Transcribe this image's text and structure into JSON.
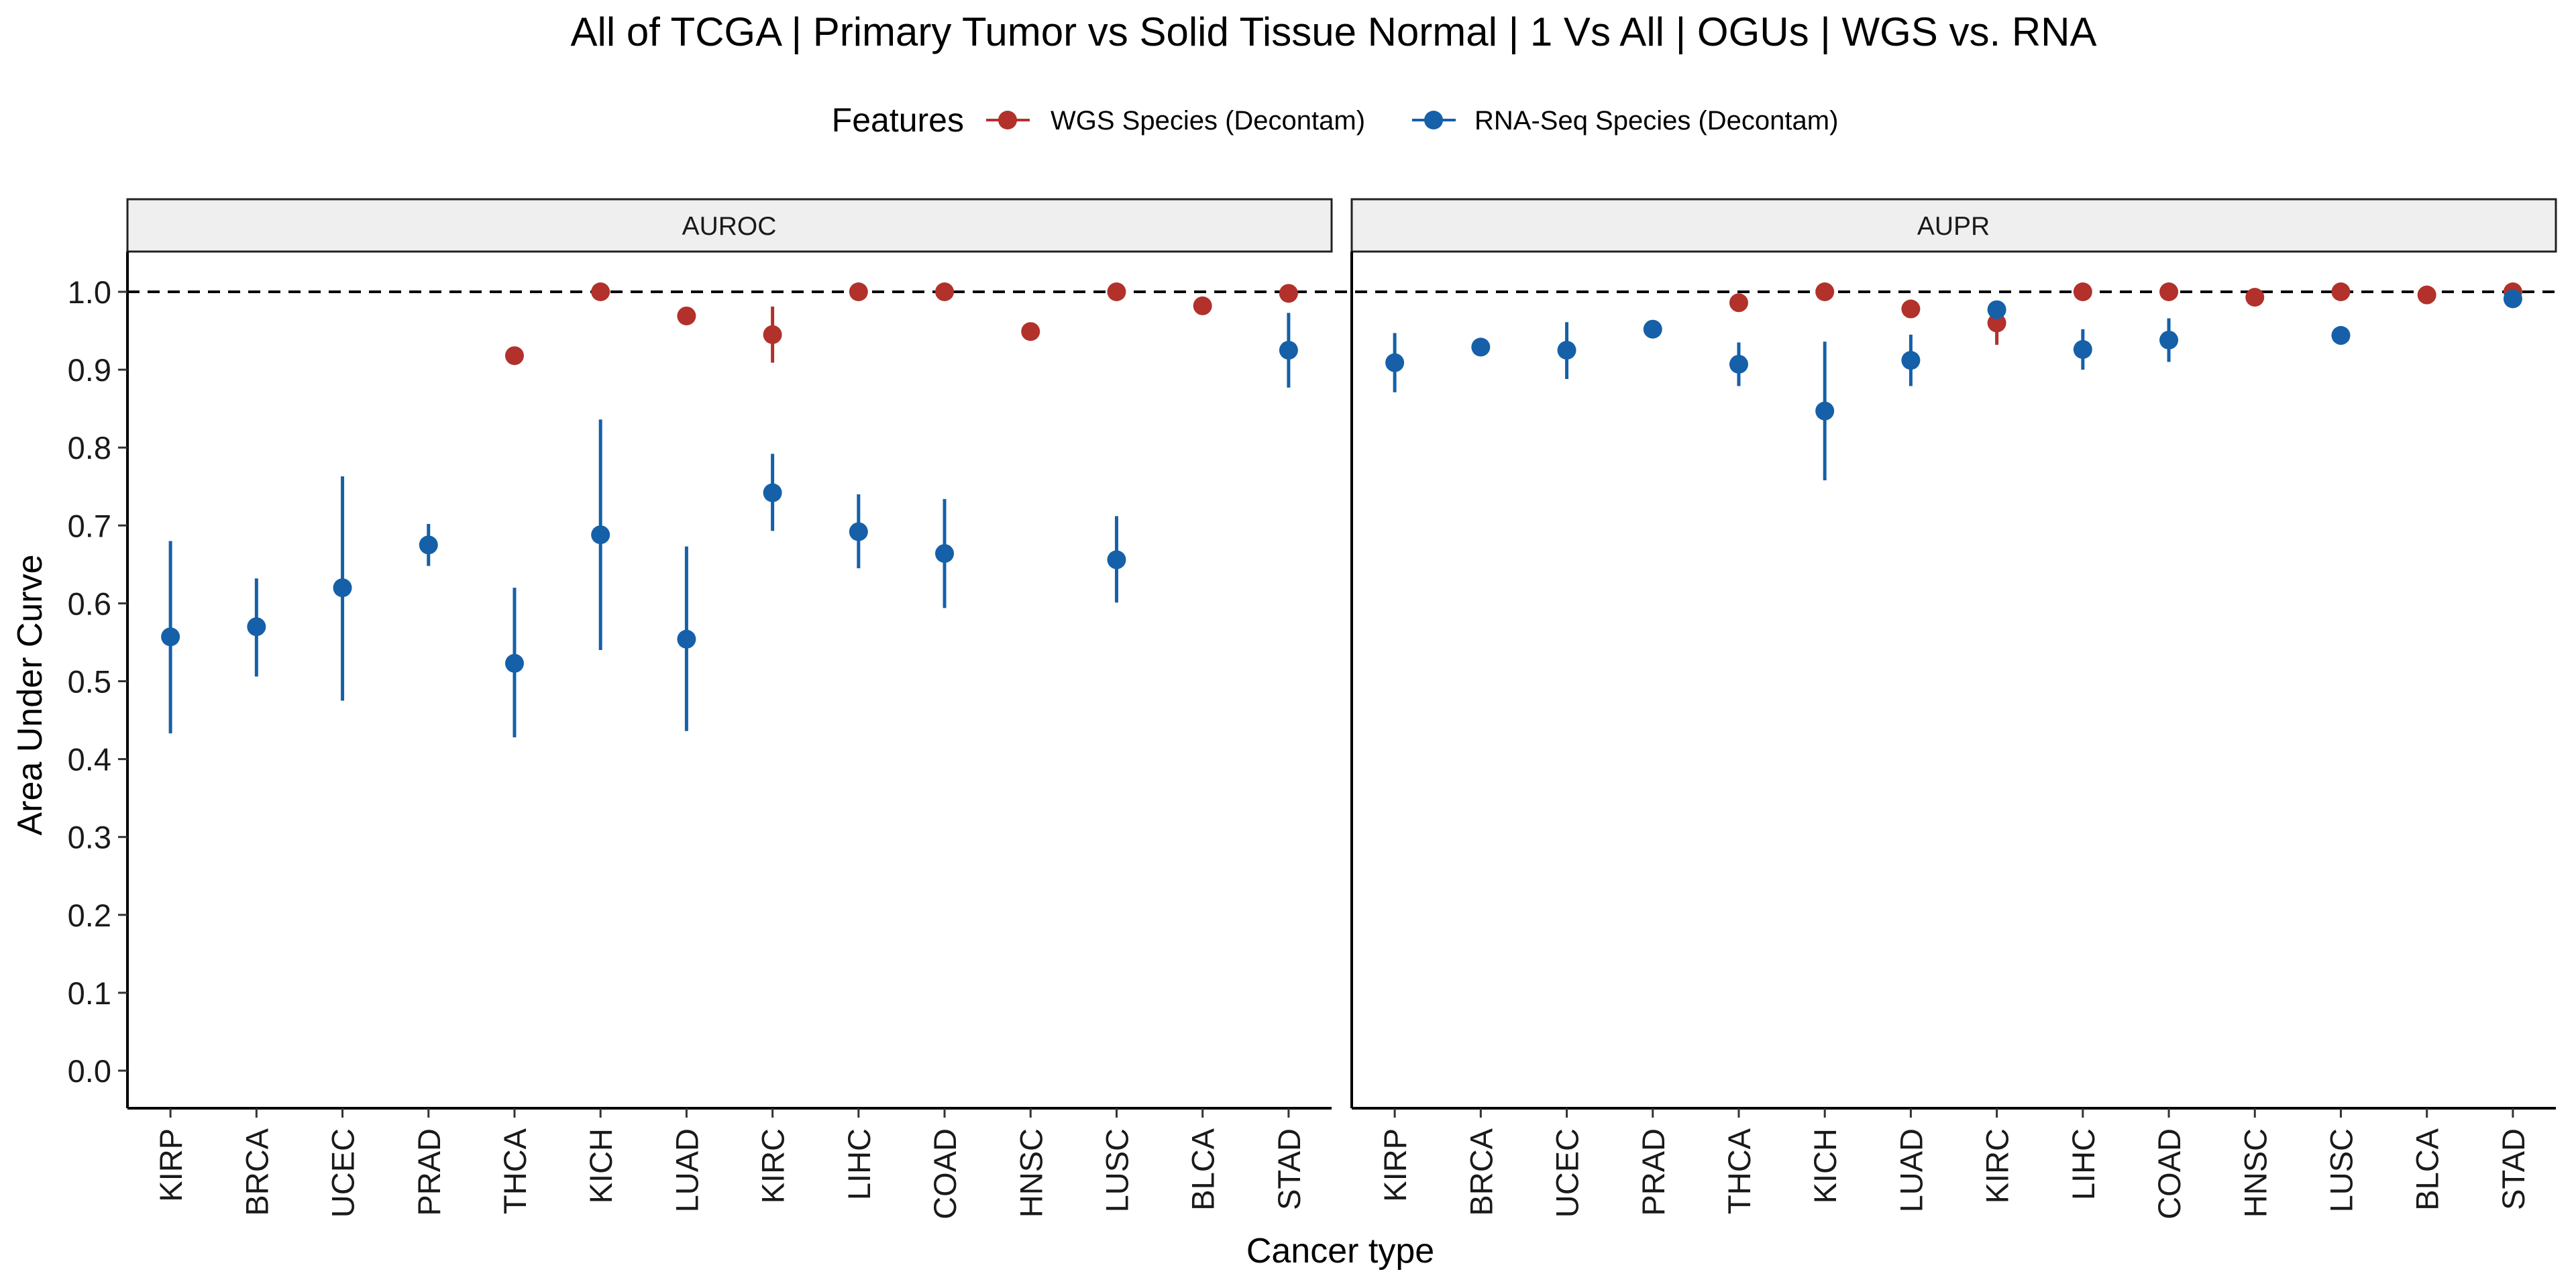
{
  "chart_data": {
    "type": "scatter",
    "title": "All of TCGA | Primary Tumor vs Solid Tissue Normal | 1 Vs All | OGUs | WGS vs. RNA",
    "xlabel": "Cancer type",
    "ylabel": "Area Under Curve",
    "ylim": [
      -0.05,
      1.05
    ],
    "yticks": [
      "0.0",
      "0.1",
      "0.2",
      "0.3",
      "0.4",
      "0.5",
      "0.6",
      "0.7",
      "0.8",
      "0.9",
      "1.0"
    ],
    "reference_line": 1.0,
    "legend": {
      "title": "Features",
      "position": "top"
    },
    "categories": [
      "KIRP",
      "BRCA",
      "UCEC",
      "PRAD",
      "THCA",
      "KICH",
      "LUAD",
      "KIRC",
      "LIHC",
      "COAD",
      "HNSC",
      "LUSC",
      "BLCA",
      "STAD"
    ],
    "series": [
      {
        "name": "WGS Species (Decontam)",
        "color": "#b2312b"
      },
      {
        "name": "RNA-Seq Species (Decontam)",
        "color": "#1560a8"
      }
    ],
    "panels": [
      {
        "label": "AUROC",
        "points": [
          {
            "category": "KIRP",
            "series": 1,
            "y": 0.557,
            "lo": 0.433,
            "hi": 0.68
          },
          {
            "category": "BRCA",
            "series": 1,
            "y": 0.57,
            "lo": 0.506,
            "hi": 0.632
          },
          {
            "category": "UCEC",
            "series": 1,
            "y": 0.62,
            "lo": 0.475,
            "hi": 0.763
          },
          {
            "category": "PRAD",
            "series": 1,
            "y": 0.675,
            "lo": 0.648,
            "hi": 0.702
          },
          {
            "category": "THCA",
            "series": 0,
            "y": 0.918,
            "lo": 0.918,
            "hi": 0.918
          },
          {
            "category": "THCA",
            "series": 1,
            "y": 0.523,
            "lo": 0.428,
            "hi": 0.62
          },
          {
            "category": "KICH",
            "series": 0,
            "y": 1.0,
            "lo": 1.0,
            "hi": 1.0
          },
          {
            "category": "KICH",
            "series": 1,
            "y": 0.688,
            "lo": 0.54,
            "hi": 0.836
          },
          {
            "category": "LUAD",
            "series": 0,
            "y": 0.969,
            "lo": 0.969,
            "hi": 0.969
          },
          {
            "category": "LUAD",
            "series": 1,
            "y": 0.554,
            "lo": 0.436,
            "hi": 0.673
          },
          {
            "category": "KIRC",
            "series": 0,
            "y": 0.945,
            "lo": 0.909,
            "hi": 0.981
          },
          {
            "category": "KIRC",
            "series": 1,
            "y": 0.742,
            "lo": 0.693,
            "hi": 0.792
          },
          {
            "category": "LIHC",
            "series": 0,
            "y": 1.0,
            "lo": 1.0,
            "hi": 1.0
          },
          {
            "category": "LIHC",
            "series": 1,
            "y": 0.692,
            "lo": 0.645,
            "hi": 0.74
          },
          {
            "category": "COAD",
            "series": 0,
            "y": 1.0,
            "lo": 1.0,
            "hi": 1.0
          },
          {
            "category": "COAD",
            "series": 1,
            "y": 0.664,
            "lo": 0.594,
            "hi": 0.734
          },
          {
            "category": "HNSC",
            "series": 0,
            "y": 0.949,
            "lo": 0.949,
            "hi": 0.949
          },
          {
            "category": "LUSC",
            "series": 0,
            "y": 1.0,
            "lo": 1.0,
            "hi": 1.0
          },
          {
            "category": "LUSC",
            "series": 1,
            "y": 0.656,
            "lo": 0.601,
            "hi": 0.712
          },
          {
            "category": "BLCA",
            "series": 0,
            "y": 0.982,
            "lo": 0.982,
            "hi": 0.982
          },
          {
            "category": "STAD",
            "series": 0,
            "y": 0.998,
            "lo": 0.998,
            "hi": 0.998
          },
          {
            "category": "STAD",
            "series": 1,
            "y": 0.925,
            "lo": 0.877,
            "hi": 0.973
          }
        ]
      },
      {
        "label": "AUPR",
        "points": [
          {
            "category": "KIRP",
            "series": 1,
            "y": 0.909,
            "lo": 0.871,
            "hi": 0.947
          },
          {
            "category": "BRCA",
            "series": 1,
            "y": 0.929,
            "lo": 0.929,
            "hi": 0.929
          },
          {
            "category": "UCEC",
            "series": 1,
            "y": 0.925,
            "lo": 0.888,
            "hi": 0.961
          },
          {
            "category": "PRAD",
            "series": 1,
            "y": 0.952,
            "lo": 0.952,
            "hi": 0.952
          },
          {
            "category": "THCA",
            "series": 0,
            "y": 0.986,
            "lo": 0.986,
            "hi": 0.986
          },
          {
            "category": "THCA",
            "series": 1,
            "y": 0.907,
            "lo": 0.879,
            "hi": 0.935
          },
          {
            "category": "KICH",
            "series": 0,
            "y": 1.0,
            "lo": 1.0,
            "hi": 1.0
          },
          {
            "category": "KICH",
            "series": 1,
            "y": 0.847,
            "lo": 0.758,
            "hi": 0.936
          },
          {
            "category": "LUAD",
            "series": 0,
            "y": 0.978,
            "lo": 0.978,
            "hi": 0.978
          },
          {
            "category": "LUAD",
            "series": 1,
            "y": 0.912,
            "lo": 0.879,
            "hi": 0.945
          },
          {
            "category": "KIRC",
            "series": 0,
            "y": 0.96,
            "lo": 0.932,
            "hi": 0.988
          },
          {
            "category": "KIRC",
            "series": 1,
            "y": 0.977,
            "lo": 0.977,
            "hi": 0.977
          },
          {
            "category": "LIHC",
            "series": 0,
            "y": 1.0,
            "lo": 1.0,
            "hi": 1.0
          },
          {
            "category": "LIHC",
            "series": 1,
            "y": 0.926,
            "lo": 0.9,
            "hi": 0.952
          },
          {
            "category": "COAD",
            "series": 0,
            "y": 1.0,
            "lo": 1.0,
            "hi": 1.0
          },
          {
            "category": "COAD",
            "series": 1,
            "y": 0.938,
            "lo": 0.91,
            "hi": 0.966
          },
          {
            "category": "HNSC",
            "series": 0,
            "y": 0.993,
            "lo": 0.993,
            "hi": 0.993
          },
          {
            "category": "LUSC",
            "series": 0,
            "y": 1.0,
            "lo": 1.0,
            "hi": 1.0
          },
          {
            "category": "LUSC",
            "series": 1,
            "y": 0.944,
            "lo": 0.932,
            "hi": 0.956
          },
          {
            "category": "BLCA",
            "series": 0,
            "y": 0.996,
            "lo": 0.996,
            "hi": 0.996
          },
          {
            "category": "STAD",
            "series": 0,
            "y": 1.0,
            "lo": 1.0,
            "hi": 1.0
          },
          {
            "category": "STAD",
            "series": 1,
            "y": 0.991,
            "lo": 0.991,
            "hi": 0.991
          }
        ]
      }
    ]
  }
}
